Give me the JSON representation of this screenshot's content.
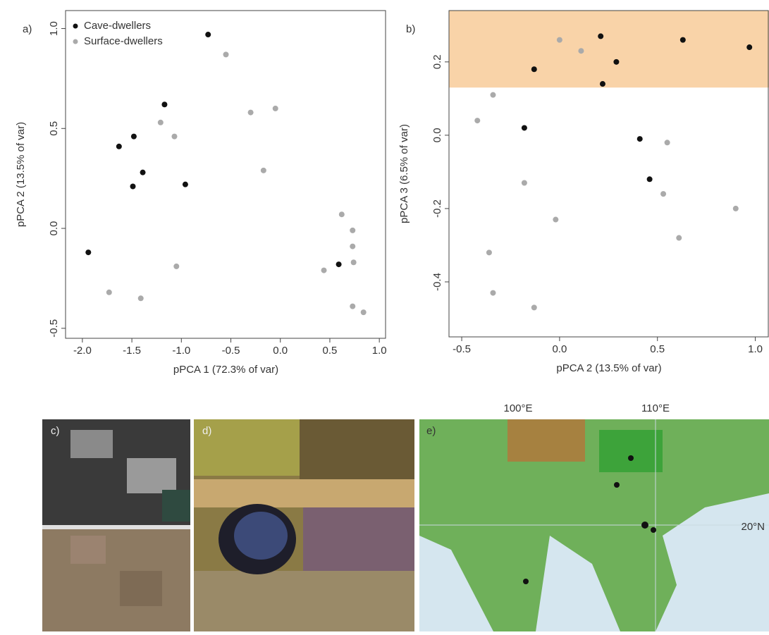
{
  "chart_data": [
    {
      "type": "scatter",
      "panel_label": "a)",
      "xlabel": "pPCA 1 (72.3% of var)",
      "ylabel": "pPCA 2 (13.5% of var)",
      "xlim": [
        -2.17,
        1.07
      ],
      "ylim": [
        -0.55,
        1.09
      ],
      "xticks": [
        {
          "value": -2.0,
          "label": "-2.0"
        },
        {
          "value": -1.5,
          "label": "-1.5"
        },
        {
          "value": -1.0,
          "label": "-1.0"
        },
        {
          "value": -0.5,
          "label": "-0.5"
        },
        {
          "value": 0.0,
          "label": "0.0"
        },
        {
          "value": 0.5,
          "label": "0.5"
        },
        {
          "value": 1.0,
          "label": "1.0"
        }
      ],
      "yticks": [
        {
          "value": -0.5,
          "label": "-0.5"
        },
        {
          "value": 0.0,
          "label": "0.0"
        },
        {
          "value": 0.5,
          "label": "0.5"
        },
        {
          "value": 1.0,
          "label": "1.0"
        }
      ],
      "legend": "upper left",
      "series": [
        {
          "name": "Cave-dwellers",
          "color": "#111111",
          "x": [
            -0.73,
            -1.17,
            -1.48,
            -1.63,
            -1.39,
            -1.49,
            -0.96,
            -1.94,
            0.59
          ],
          "values": [
            0.97,
            0.62,
            0.46,
            0.41,
            0.28,
            0.21,
            0.22,
            -0.12,
            -0.18
          ]
        },
        {
          "name": "Surface-dwellers",
          "color": "#aaaaaa",
          "x": [
            -0.55,
            -0.3,
            -0.05,
            -0.17,
            -1.21,
            -1.07,
            0.62,
            0.73,
            0.73,
            0.74,
            0.44,
            -1.73,
            -1.41,
            -1.05,
            0.73,
            0.84
          ],
          "values": [
            0.87,
            0.58,
            0.6,
            0.29,
            0.53,
            0.46,
            0.07,
            -0.01,
            -0.09,
            -0.17,
            -0.21,
            -0.32,
            -0.35,
            -0.19,
            -0.39,
            -0.42
          ]
        }
      ]
    },
    {
      "type": "scatter",
      "panel_label": "b)",
      "xlabel": "pPCA 2 (13.5% of var)",
      "ylabel": "pPCA 3 (6.5% of var)",
      "xlim": [
        -0.565,
        1.07
      ],
      "ylim": [
        -0.55,
        0.34
      ],
      "band_ylim": [
        0.13,
        0.34
      ],
      "band_color": "#f9d3a8",
      "xticks": [
        {
          "value": -0.5,
          "label": "-0.5"
        },
        {
          "value": 0.0,
          "label": "0.0"
        },
        {
          "value": 0.5,
          "label": "0.5"
        },
        {
          "value": 1.0,
          "label": "1.0"
        }
      ],
      "yticks": [
        {
          "value": -0.4,
          "label": "-0.4"
        },
        {
          "value": -0.2,
          "label": "-0.2"
        },
        {
          "value": 0.0,
          "label": "0.0"
        },
        {
          "value": 0.2,
          "label": "0.2"
        }
      ],
      "series": [
        {
          "name": "Cave-dwellers",
          "color": "#111111",
          "x": [
            -0.13,
            0.21,
            0.29,
            0.22,
            0.63,
            0.97,
            -0.18,
            0.41,
            0.46
          ],
          "values": [
            0.18,
            0.27,
            0.2,
            0.14,
            0.26,
            0.24,
            0.02,
            -0.01,
            -0.12
          ]
        },
        {
          "name": "Surface-dwellers",
          "color": "#aaaaaa",
          "x": [
            0.0,
            0.11,
            -0.42,
            -0.34,
            0.55,
            0.53,
            0.9,
            0.61,
            -0.36,
            -0.34,
            -0.13,
            -0.02,
            -0.18
          ],
          "values": [
            0.26,
            0.23,
            0.04,
            0.11,
            -0.02,
            -0.16,
            -0.2,
            -0.28,
            -0.32,
            -0.43,
            -0.47,
            -0.23,
            -0.13
          ]
        }
      ]
    }
  ],
  "panels": {
    "c": {
      "label": "c)"
    },
    "d": {
      "label": "d)"
    },
    "e": {
      "label": "e)",
      "lon_labels": [
        "100°E",
        "110°E"
      ],
      "lat_label": "20°N"
    }
  }
}
